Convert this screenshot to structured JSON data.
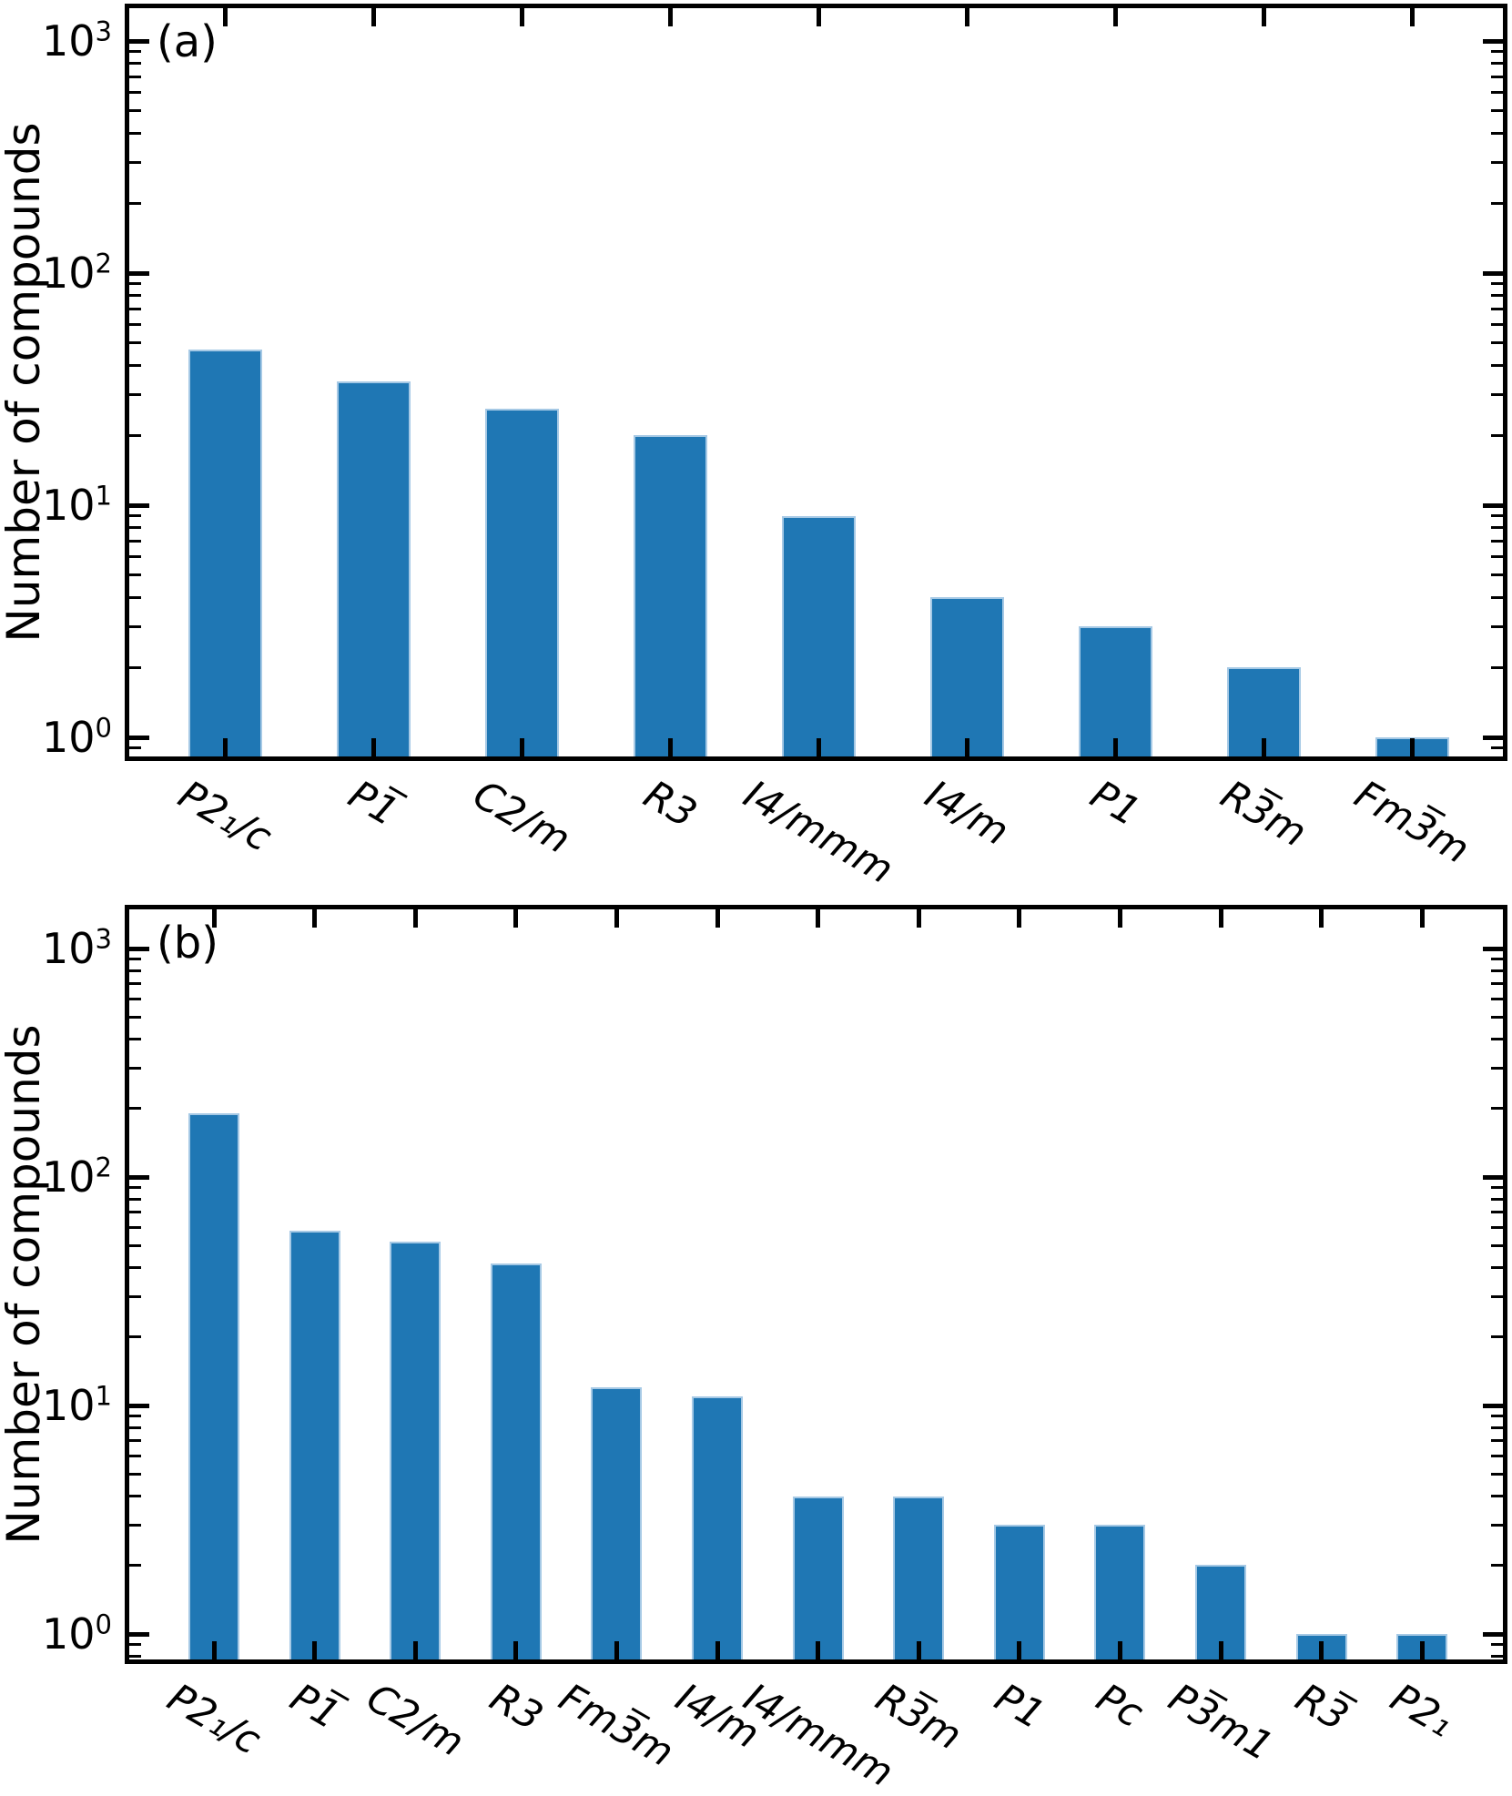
{
  "figure": {
    "background": "#ffffff",
    "bar_color": "#1f77b4",
    "bar_edge_color": "#a6c9e5",
    "axis_color": "#000000"
  },
  "chart_data": [
    {
      "type": "bar",
      "panel_label": "(a)",
      "ylabel": "Number of compounds",
      "yscale": "log",
      "ylim": [
        0.82,
        1400
      ],
      "yticks": [
        1,
        10,
        100,
        1000
      ],
      "ytick_exponents": [
        0,
        1,
        2,
        3
      ],
      "grid": false,
      "legend": null,
      "categories": [
        "P2₁/c",
        "P1̅",
        "C2/m",
        "R3",
        "I4/mmm",
        "I4/m",
        "P1",
        "R3̅m",
        "Fm3̅m"
      ],
      "values": [
        47,
        34,
        26,
        20,
        9,
        4,
        3,
        2,
        1
      ]
    },
    {
      "type": "bar",
      "panel_label": "(b)",
      "ylabel": "Number of compounds",
      "yscale": "log",
      "ylim": [
        0.75,
        1480
      ],
      "yticks": [
        1,
        10,
        100,
        1000
      ],
      "ytick_exponents": [
        0,
        1,
        2,
        3
      ],
      "grid": false,
      "legend": null,
      "categories": [
        "P2₁/c",
        "P1̅",
        "C2/m",
        "R3",
        "Fm3̅m",
        "I4/m",
        "I4/mmm",
        "R3̅m",
        "P1",
        "Pc",
        "P3̅m1",
        "R3̅",
        "P2₁"
      ],
      "values": [
        190,
        58,
        52,
        42,
        12,
        11,
        4,
        4,
        3,
        3,
        2,
        1,
        1
      ]
    }
  ]
}
